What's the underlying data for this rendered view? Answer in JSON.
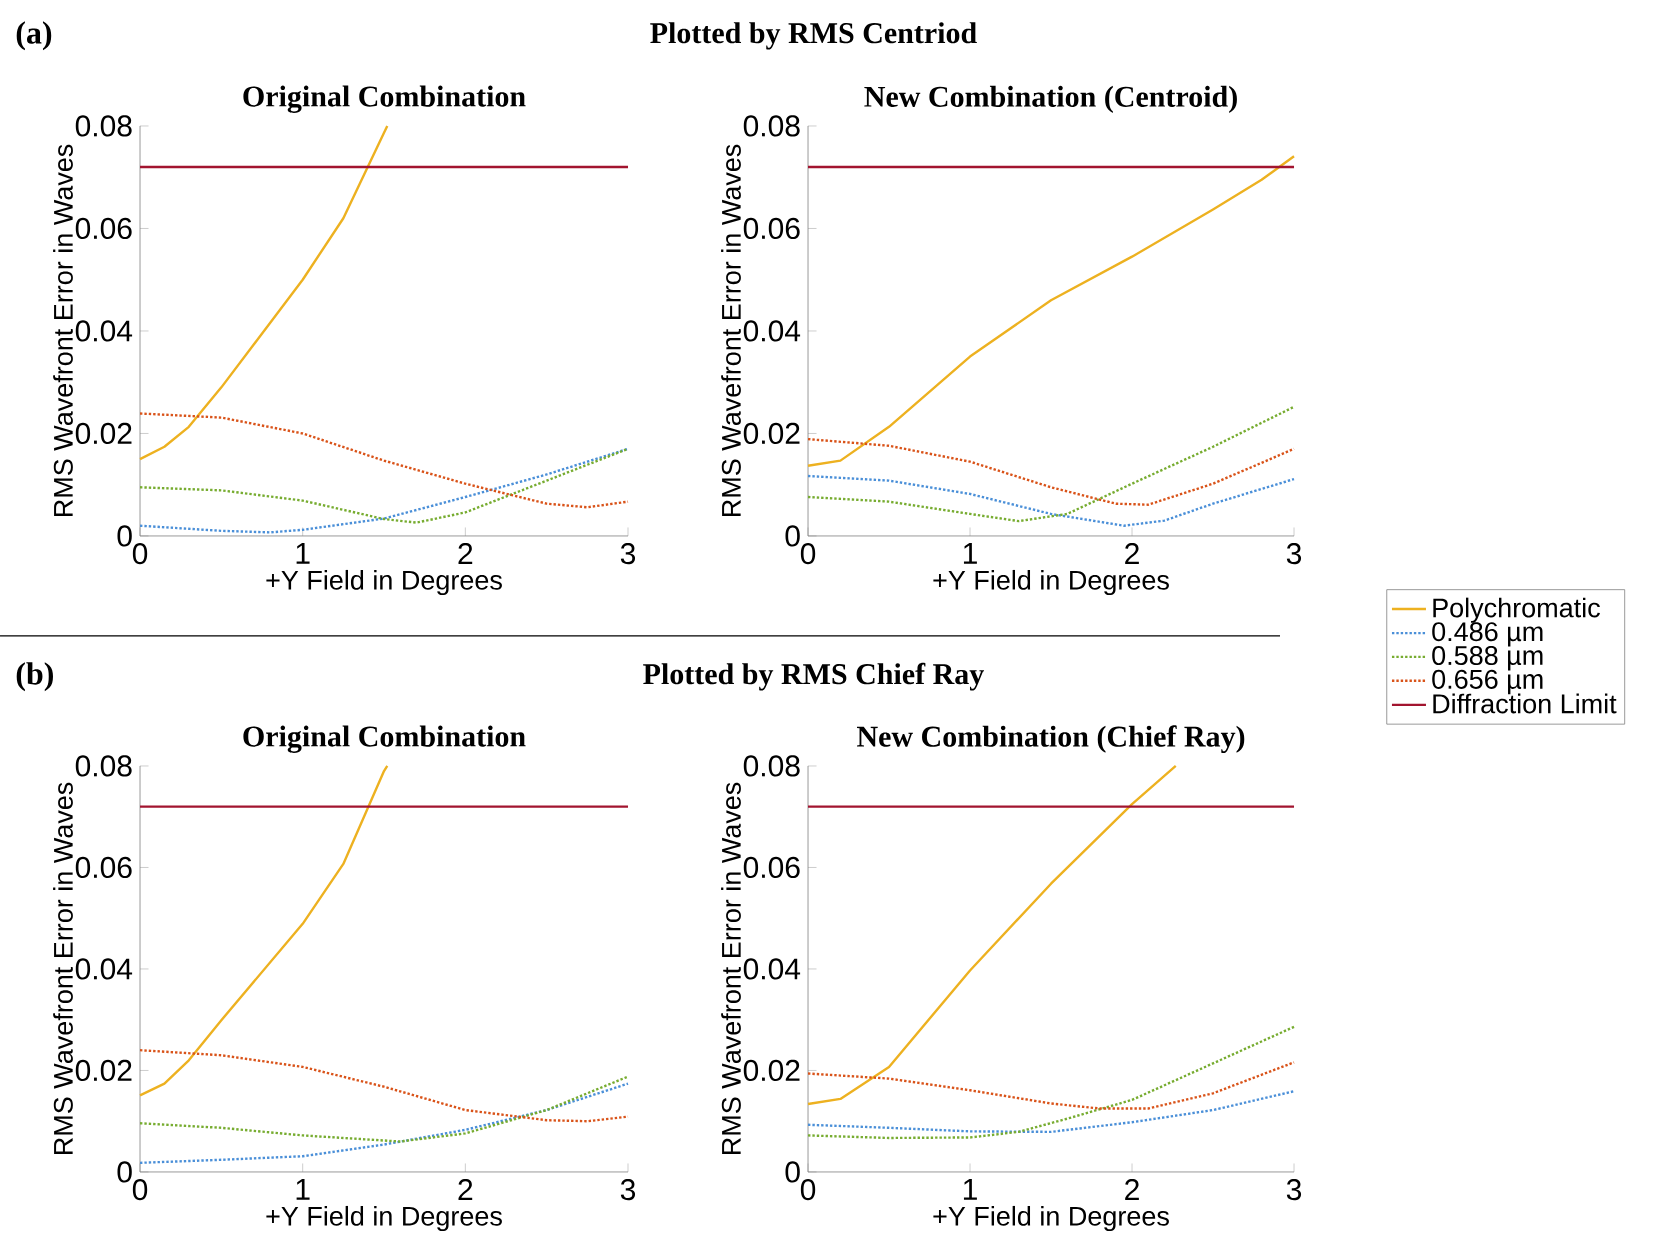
{
  "chart_data": [
    {
      "type": "line",
      "title": "Original Combination",
      "xlabel": "+Y Field in Degrees",
      "ylabel": "RMS Wavefront Error in Waves",
      "annotations": [
        "(a)",
        "Plotted by RMS Centriod"
      ],
      "xlim": [
        0,
        3
      ],
      "ylim": [
        0,
        0.08
      ],
      "xticks": [
        0,
        1,
        2,
        3
      ],
      "yticks": [
        0,
        0.02,
        0.04,
        0.06,
        0.08
      ],
      "series": [
        {
          "color": "#edb120",
          "line_style": "solid",
          "x": [
            0,
            0.15,
            0.3,
            0.5,
            0.75,
            1,
            1.25,
            1.5,
            1.52
          ],
          "values": [
            0.015,
            0.0174,
            0.0213,
            0.029,
            0.0395,
            0.05,
            0.062,
            0.0787,
            0.08
          ]
        },
        {
          "color": "#4a8fd8",
          "line_style": "dotted",
          "x": [
            0,
            0.5,
            0.8,
            1,
            1.5,
            2,
            2.5,
            3
          ],
          "values": [
            0.002,
            0.001,
            0.0007,
            0.0012,
            0.0034,
            0.0076,
            0.012,
            0.017
          ]
        },
        {
          "color": "#77ac30",
          "line_style": "dotted",
          "x": [
            0,
            0.5,
            1,
            1.5,
            1.7,
            2,
            2.5,
            3
          ],
          "values": [
            0.0095,
            0.0089,
            0.0069,
            0.0033,
            0.0026,
            0.0046,
            0.0108,
            0.017
          ]
        },
        {
          "color": "#d95319",
          "line_style": "dotted",
          "x": [
            0,
            0.5,
            1,
            1.5,
            2,
            2.5,
            2.75,
            3
          ],
          "values": [
            0.0239,
            0.0231,
            0.02,
            0.0147,
            0.0102,
            0.0063,
            0.0056,
            0.0067
          ]
        },
        {
          "color": "#a2142f",
          "line_style": "solid",
          "x": [
            0,
            3
          ],
          "values": [
            0.072,
            0.072
          ]
        }
      ]
    },
    {
      "type": "line",
      "title": "New Combination (Centroid)",
      "xlabel": "+Y Field in Degrees",
      "ylabel": "RMS Wavefront Error in Waves",
      "legend": "right",
      "xlim": [
        0,
        3
      ],
      "ylim": [
        0,
        0.08
      ],
      "xticks": [
        0,
        1,
        2,
        3
      ],
      "yticks": [
        0,
        0.02,
        0.04,
        0.06,
        0.08
      ],
      "series": [
        {
          "name": "Polychromatic",
          "color": "#edb120",
          "line_style": "solid",
          "x": [
            0,
            0.2,
            0.5,
            1,
            1.5,
            2,
            2.5,
            2.8,
            3
          ],
          "values": [
            0.0137,
            0.0147,
            0.0213,
            0.035,
            0.046,
            0.0545,
            0.0637,
            0.0695,
            0.0741
          ]
        },
        {
          "name": "0.486 µm",
          "color": "#4a8fd8",
          "line_style": "dotted",
          "x": [
            0,
            0.5,
            1,
            1.5,
            1.95,
            2.2,
            2.5,
            3
          ],
          "values": [
            0.0117,
            0.0108,
            0.0082,
            0.0043,
            0.002,
            0.003,
            0.0063,
            0.0111
          ]
        },
        {
          "name": "0.588 µm",
          "color": "#77ac30",
          "line_style": "dotted",
          "x": [
            0,
            0.5,
            1,
            1.3,
            1.6,
            2,
            2.5,
            3
          ],
          "values": [
            0.0076,
            0.0067,
            0.0043,
            0.0029,
            0.0043,
            0.0102,
            0.0174,
            0.0252
          ]
        },
        {
          "name": "0.656 µm",
          "color": "#d95319",
          "line_style": "dotted",
          "x": [
            0,
            0.5,
            1,
            1.5,
            1.9,
            2.1,
            2.5,
            3
          ],
          "values": [
            0.0189,
            0.0176,
            0.0145,
            0.0095,
            0.0063,
            0.0061,
            0.0102,
            0.017
          ]
        },
        {
          "name": "Diffraction Limit",
          "color": "#a2142f",
          "line_style": "solid",
          "x": [
            0,
            3
          ],
          "values": [
            0.072,
            0.072
          ]
        }
      ]
    },
    {
      "type": "line",
      "title": "Original Combination",
      "xlabel": "+Y Field in Degrees",
      "ylabel": "RMS Wavefront Error in Waves",
      "annotations": [
        "(b)",
        "Plotted by RMS Chief Ray"
      ],
      "xlim": [
        0,
        3
      ],
      "ylim": [
        0,
        0.08
      ],
      "xticks": [
        0,
        1,
        2,
        3
      ],
      "yticks": [
        0,
        0.02,
        0.04,
        0.06,
        0.08
      ],
      "series": [
        {
          "color": "#edb120",
          "line_style": "solid",
          "x": [
            0,
            0.15,
            0.3,
            0.5,
            1,
            1.25,
            1.5,
            1.52
          ],
          "values": [
            0.0151,
            0.0174,
            0.022,
            0.0299,
            0.0489,
            0.0607,
            0.079,
            0.08
          ]
        },
        {
          "color": "#4a8fd8",
          "line_style": "dotted",
          "x": [
            0,
            0.5,
            1,
            1.5,
            2,
            2.5,
            3
          ],
          "values": [
            0.0018,
            0.0024,
            0.0031,
            0.0054,
            0.0083,
            0.0122,
            0.0174
          ]
        },
        {
          "color": "#77ac30",
          "line_style": "dotted",
          "x": [
            0,
            0.5,
            1,
            1.6,
            2,
            2.5,
            3
          ],
          "values": [
            0.0096,
            0.0087,
            0.0072,
            0.006,
            0.0076,
            0.0122,
            0.0188
          ]
        },
        {
          "color": "#d95319",
          "line_style": "dotted",
          "x": [
            0,
            0.5,
            1,
            1.5,
            2,
            2.5,
            2.75,
            3
          ],
          "values": [
            0.024,
            0.023,
            0.0207,
            0.0168,
            0.0122,
            0.0102,
            0.01,
            0.0109
          ]
        },
        {
          "color": "#a2142f",
          "line_style": "solid",
          "x": [
            0,
            3
          ],
          "values": [
            0.072,
            0.072
          ]
        }
      ]
    },
    {
      "type": "line",
      "title": "New Combination (Chief Ray)",
      "xlabel": "+Y Field in Degrees",
      "ylabel": "RMS Wavefront Error in Waves",
      "xlim": [
        0,
        3
      ],
      "ylim": [
        0,
        0.08
      ],
      "xticks": [
        0,
        1,
        2,
        3
      ],
      "yticks": [
        0,
        0.02,
        0.04,
        0.06,
        0.08
      ],
      "series": [
        {
          "color": "#edb120",
          "line_style": "solid",
          "x": [
            0,
            0.2,
            0.5,
            1,
            1.5,
            2,
            2.27
          ],
          "values": [
            0.0134,
            0.0144,
            0.0207,
            0.0397,
            0.0568,
            0.0725,
            0.08
          ]
        },
        {
          "color": "#4a8fd8",
          "line_style": "dotted",
          "x": [
            0,
            0.5,
            1,
            1.5,
            2,
            2.5,
            3
          ],
          "values": [
            0.0093,
            0.0087,
            0.008,
            0.0079,
            0.0098,
            0.0122,
            0.0159
          ]
        },
        {
          "color": "#77ac30",
          "line_style": "dotted",
          "x": [
            0,
            0.5,
            1,
            1.3,
            1.6,
            2,
            2.5,
            3
          ],
          "values": [
            0.0072,
            0.0067,
            0.0068,
            0.0079,
            0.0105,
            0.0142,
            0.0214,
            0.0286
          ]
        },
        {
          "color": "#d95319",
          "line_style": "dotted",
          "x": [
            0,
            0.5,
            1,
            1.5,
            1.8,
            2.1,
            2.5,
            3
          ],
          "values": [
            0.0194,
            0.0184,
            0.0161,
            0.0135,
            0.0125,
            0.0125,
            0.0155,
            0.0216
          ]
        },
        {
          "color": "#a2142f",
          "line_style": "solid",
          "x": [
            0,
            3
          ],
          "values": [
            0.072,
            0.072
          ]
        }
      ]
    }
  ]
}
